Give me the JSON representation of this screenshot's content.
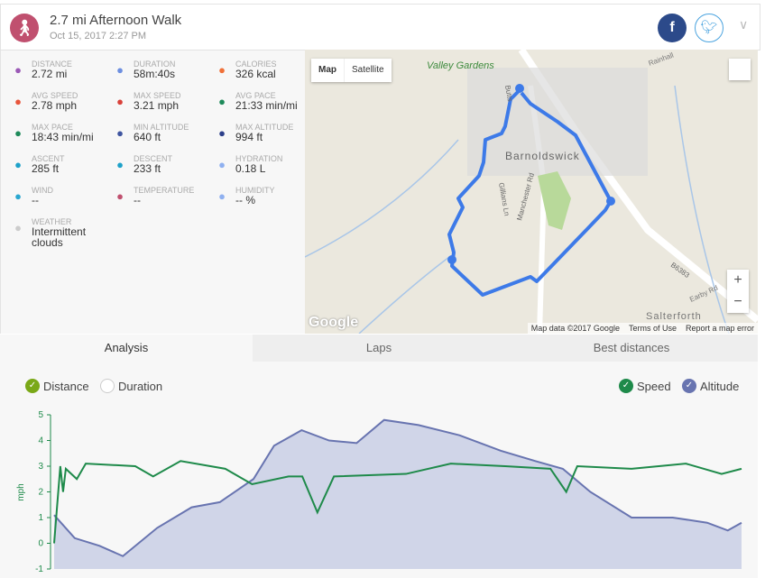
{
  "header": {
    "title": "2.7 mi Afternoon Walk",
    "date": "Oct 15, 2017 2:27 PM",
    "activity_icon": "walk-icon",
    "share": [
      "facebook",
      "twitter"
    ]
  },
  "stats": [
    {
      "label": "DISTANCE",
      "value": "2.72 mi",
      "icon": "distance-icon",
      "color": "#9b59b6"
    },
    {
      "label": "DURATION",
      "value": "58m:40s",
      "icon": "stopwatch-icon",
      "color": "#6d8fe0"
    },
    {
      "label": "CALORIES",
      "value": "326 kcal",
      "icon": "flame-icon",
      "color": "#f07038"
    },
    {
      "label": "AVG SPEED",
      "value": "2.78 mph",
      "icon": "speedometer-icon",
      "color": "#e8553c"
    },
    {
      "label": "MAX SPEED",
      "value": "3.21 mph",
      "icon": "speedometer-icon",
      "color": "#d9413a"
    },
    {
      "label": "AVG PACE",
      "value": "21:33 min/mi",
      "icon": "gauge-icon",
      "color": "#1e8a5a"
    },
    {
      "label": "MAX PACE",
      "value": "18:43 min/mi",
      "icon": "gauge-icon",
      "color": "#1e8a5a"
    },
    {
      "label": "MIN ALTITUDE",
      "value": "640 ft",
      "icon": "mountain-icon",
      "color": "#3f55a0"
    },
    {
      "label": "MAX ALTITUDE",
      "value": "994 ft",
      "icon": "mountain-icon",
      "color": "#2c3f8a"
    },
    {
      "label": "ASCENT",
      "value": "285 ft",
      "icon": "ascent-icon",
      "color": "#1da1c9"
    },
    {
      "label": "DESCENT",
      "value": "233 ft",
      "icon": "descent-icon",
      "color": "#1da1c9"
    },
    {
      "label": "HYDRATION",
      "value": "0.18 L",
      "icon": "drops-icon",
      "color": "#8fb0f0"
    },
    {
      "label": "WIND",
      "value": "--",
      "icon": "wind-icon",
      "color": "#2aa7d0"
    },
    {
      "label": "TEMPERATURE",
      "value": "--",
      "icon": "thermometer-icon",
      "color": "#c0506f"
    },
    {
      "label": "HUMIDITY",
      "value": "-- %",
      "icon": "humidity-icon",
      "color": "#8fb0f0"
    },
    {
      "label": "WEATHER",
      "value": "Intermittent clouds",
      "icon": "cloud-sun-icon",
      "color": "#ccc"
    }
  ],
  "map": {
    "type_buttons": [
      "Map",
      "Satellite"
    ],
    "selected": "Map",
    "labels": [
      "Valley Gardens",
      "Barnoldswick",
      "Manchester Rd",
      "Gillians Ln",
      "Butts",
      "B6383",
      "Salterforth",
      "Rainhall",
      "Earby Rd"
    ],
    "markers": [
      "1",
      "2"
    ],
    "footer": [
      "Map data ©2017 Google",
      "Terms of Use",
      "Report a map error"
    ],
    "logo": "Google",
    "route_color": "#3d7ae8"
  },
  "tabs": [
    "Analysis",
    "Laps",
    "Best distances"
  ],
  "active_tab": "Analysis",
  "toggles": {
    "left": [
      {
        "label": "Distance",
        "checked": true,
        "color": "#7aa817"
      },
      {
        "label": "Duration",
        "checked": false
      }
    ],
    "right": [
      {
        "label": "Speed",
        "checked": true,
        "color": "#1e8a4a"
      },
      {
        "label": "Altitude",
        "checked": true,
        "color": "#6874b0"
      }
    ]
  },
  "chart_data": {
    "type": "line",
    "ylabel": "mph",
    "ylim": [
      -1,
      5
    ],
    "yticks": [
      "5",
      "4",
      "3",
      "2",
      "1",
      "0",
      "-1"
    ],
    "grid": false,
    "series": [
      {
        "name": "Speed",
        "color": "#1e8a4a",
        "x": [
          0,
          0.9,
          1.3,
          1.7,
          3.3,
          4.6,
          11.8,
          14.4,
          18.4,
          24.9,
          28.8,
          34.1,
          36.1,
          38.3,
          40.7,
          51.2,
          57.7,
          65.6,
          72.2,
          74.5,
          76.1,
          84,
          91.9,
          97.1,
          100
        ],
        "values": [
          0,
          3,
          2,
          2.9,
          2.5,
          3.1,
          3.0,
          2.6,
          3.2,
          2.9,
          2.3,
          2.6,
          2.6,
          1.2,
          2.6,
          2.7,
          3.1,
          3.0,
          2.9,
          2.0,
          3.0,
          2.9,
          3.1,
          2.7,
          2.9
        ]
      },
      {
        "name": "Altitude",
        "color": "#6874b0",
        "fill": "#d0d5e8",
        "x": [
          0,
          3,
          6.6,
          10,
          15,
          20,
          24.1,
          29,
          32,
          36,
          40,
          44,
          48,
          53,
          59,
          65,
          70,
          74,
          78,
          84,
          90,
          95,
          98,
          100
        ],
        "values": [
          1.1,
          0.2,
          -0.1,
          -0.5,
          0.6,
          1.4,
          1.6,
          2.5,
          3.8,
          4.4,
          4.0,
          3.9,
          4.8,
          4.6,
          4.2,
          3.6,
          3.2,
          2.9,
          2.0,
          1.0,
          1.0,
          0.8,
          0.5,
          0.8
        ]
      }
    ]
  }
}
